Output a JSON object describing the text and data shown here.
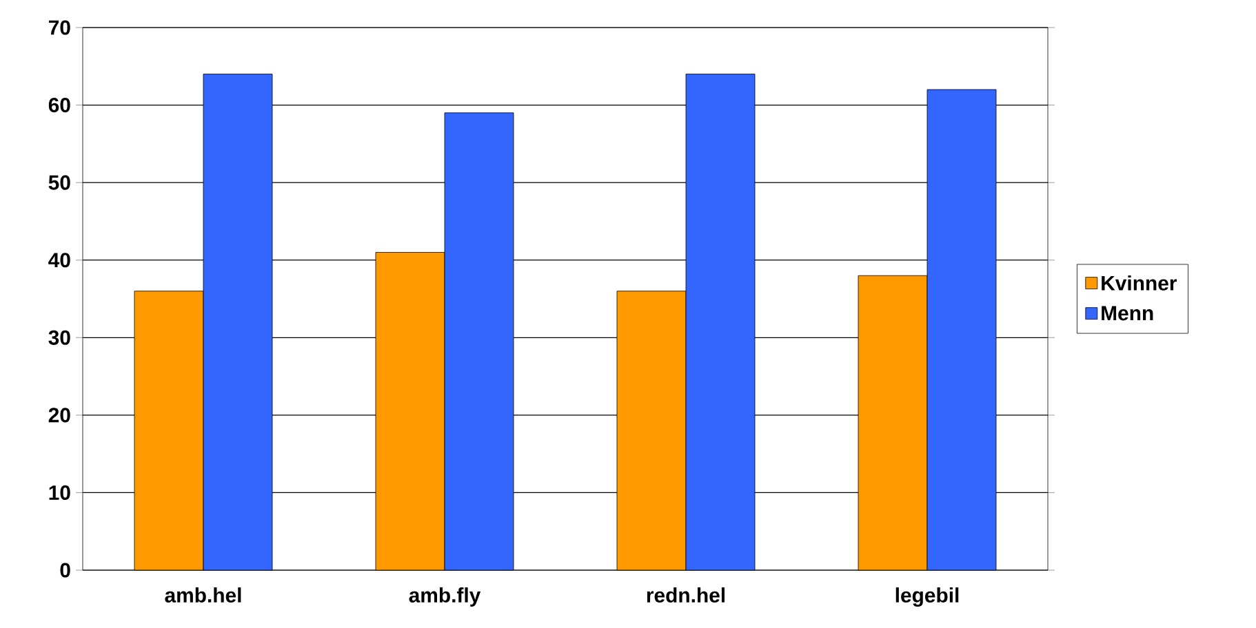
{
  "chart_data": {
    "type": "bar",
    "categories": [
      "amb.hel",
      "amb.fly",
      "redn.hel",
      "legebil"
    ],
    "series": [
      {
        "name": "Kvinner",
        "color": "#ff9900",
        "values": [
          36,
          41,
          36,
          38
        ]
      },
      {
        "name": "Menn",
        "color": "#3366ff",
        "values": [
          64,
          59,
          64,
          62
        ]
      }
    ],
    "ylim": [
      0,
      70
    ],
    "yticks": [
      0,
      10,
      20,
      30,
      40,
      50,
      60,
      70
    ],
    "grid": "y",
    "legend": "right"
  }
}
